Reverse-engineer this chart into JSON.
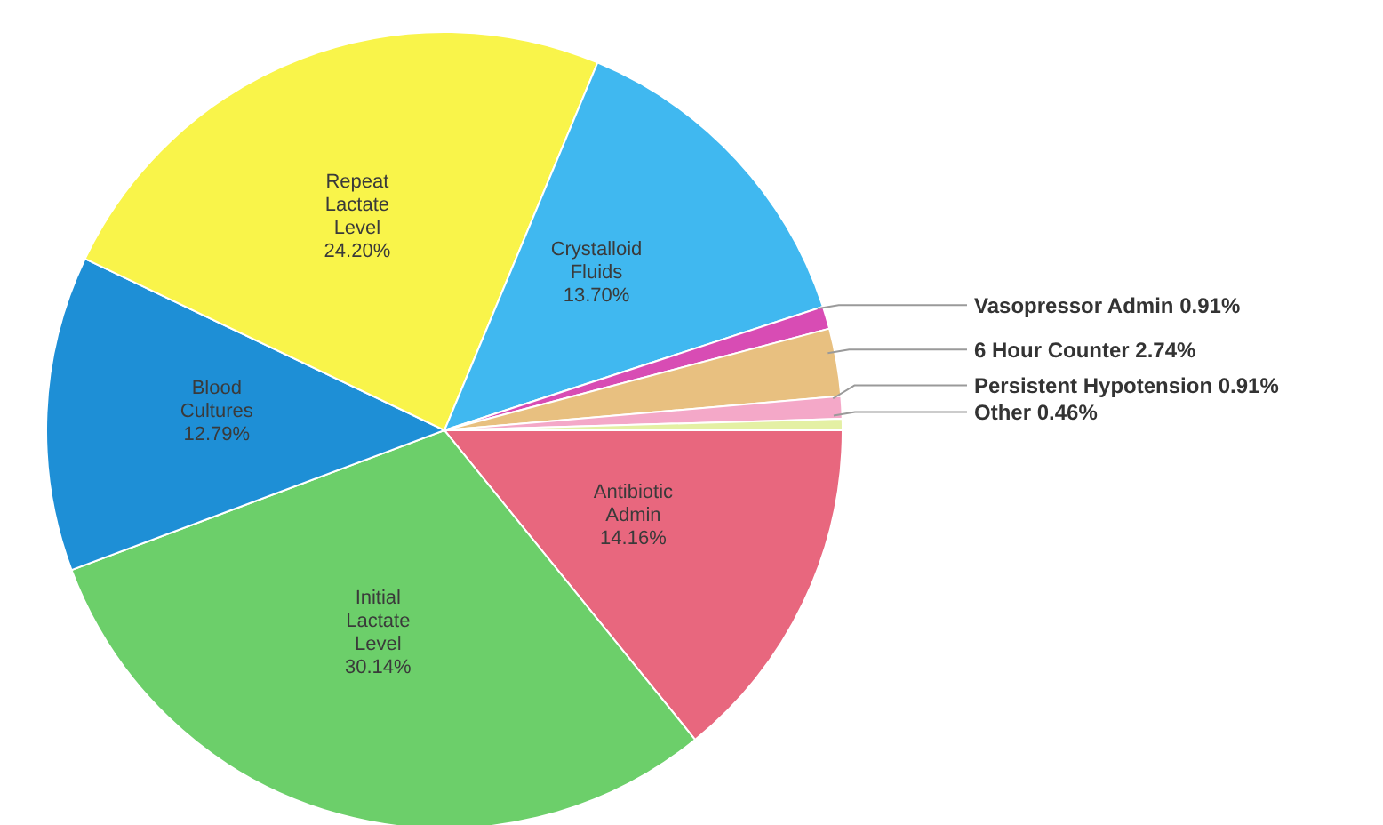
{
  "chart_data": {
    "type": "pie",
    "categories": [
      "Antibiotic Admin",
      "Initial Lactate Level",
      "Blood Cultures",
      "Repeat Lactate Level",
      "Crystalloid Fluids",
      "Vasopressor Admin",
      "6 Hour Counter",
      "Persistent Hypotension",
      "Other"
    ],
    "values": [
      14.16,
      30.14,
      12.79,
      24.2,
      13.7,
      0.91,
      2.74,
      0.91,
      0.46
    ],
    "colors": [
      "#e8677e",
      "#6ccf6a",
      "#1e8fd6",
      "#f9f44a",
      "#40b8f0",
      "#d84cb4",
      "#e8c080",
      "#f4a8c8",
      "#e4f0a4"
    ],
    "value_labels": [
      "14.16%",
      "30.14%",
      "12.79%",
      "24.20%",
      "13.70%",
      "0.91%",
      "2.74%",
      "0.91%",
      "0.46%"
    ]
  }
}
